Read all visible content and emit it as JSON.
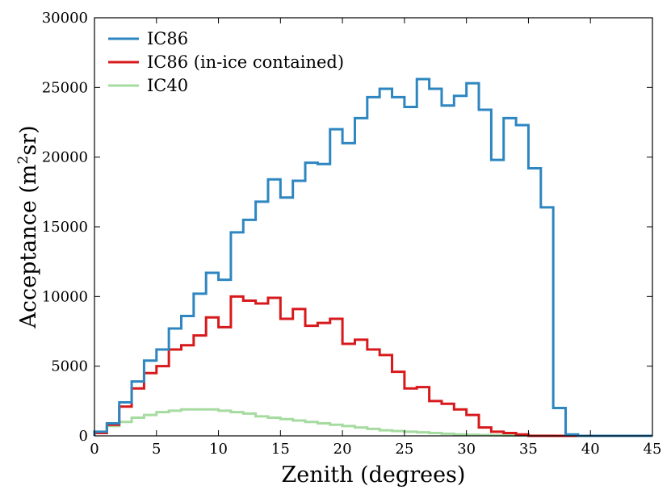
{
  "chart_data": {
    "type": "line",
    "style": "step histogram",
    "title": "",
    "xlabel": "Zenith (degrees)",
    "ylabel_main": "Acceptance (m",
    "ylabel_sup": "2",
    "ylabel_end": "sr)",
    "xlim": [
      0,
      45
    ],
    "ylim": [
      0,
      30000
    ],
    "xticks": [
      0,
      5,
      10,
      15,
      20,
      25,
      30,
      35,
      40,
      45
    ],
    "yticks": [
      0,
      5000,
      10000,
      15000,
      20000,
      25000,
      30000
    ],
    "xtick_labels": [
      "0",
      "5",
      "10",
      "15",
      "20",
      "25",
      "30",
      "35",
      "40",
      "45"
    ],
    "ytick_labels": [
      "0",
      "5000",
      "10000",
      "15000",
      "20000",
      "25000",
      "30000"
    ],
    "bin_edges": [
      0,
      1,
      2,
      3,
      4,
      5,
      6,
      7,
      8,
      9,
      10,
      11,
      12,
      13,
      14,
      15,
      16,
      17,
      18,
      19,
      20,
      21,
      22,
      23,
      24,
      25,
      26,
      27,
      28,
      29,
      30,
      31,
      32,
      33,
      34,
      35,
      36,
      37,
      38,
      39,
      40,
      41,
      42,
      43,
      44,
      45
    ],
    "legend_position": "top-left",
    "series": [
      {
        "name": "IC86",
        "color": "#2e86c1",
        "values": [
          300,
          900,
          2400,
          3900,
          5400,
          6200,
          7700,
          8600,
          10200,
          11700,
          11200,
          14600,
          15500,
          16800,
          18400,
          17100,
          18300,
          19600,
          19500,
          22000,
          21000,
          22800,
          24300,
          24900,
          24300,
          23600,
          25600,
          24900,
          23700,
          24400,
          25300,
          23400,
          19800,
          22800,
          22300,
          19200,
          16400,
          2000,
          100,
          0,
          0,
          0,
          0,
          0,
          0
        ]
      },
      {
        "name": "IC86 (in-ice contained)",
        "color": "#d7191c",
        "values": [
          200,
          800,
          2100,
          3400,
          4500,
          5000,
          6200,
          6500,
          7200,
          8500,
          7800,
          10000,
          9700,
          9500,
          9900,
          8400,
          9100,
          7900,
          8100,
          8400,
          6600,
          6900,
          6200,
          5800,
          4600,
          3400,
          3500,
          2500,
          2300,
          1900,
          1500,
          600,
          300,
          200,
          100,
          0,
          0,
          0,
          0,
          0,
          0,
          0,
          0,
          0,
          0
        ]
      },
      {
        "name": "IC40",
        "color": "#a6dba0",
        "values": [
          200,
          700,
          1000,
          1300,
          1500,
          1700,
          1800,
          1900,
          1900,
          1900,
          1800,
          1700,
          1600,
          1400,
          1300,
          1200,
          1100,
          1000,
          900,
          800,
          700,
          600,
          500,
          400,
          350,
          300,
          250,
          200,
          150,
          100,
          80,
          60,
          40,
          30,
          20,
          10,
          5,
          0,
          0,
          0,
          0,
          0,
          0,
          0,
          0
        ]
      }
    ]
  }
}
